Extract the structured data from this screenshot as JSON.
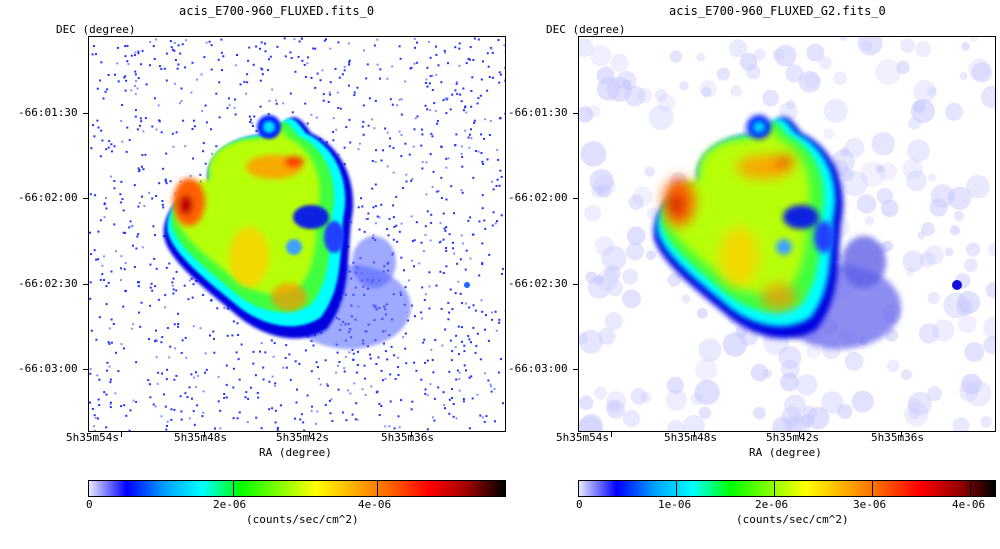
{
  "panels": [
    {
      "title": "acis_E700-960_FLUXED.fits_0",
      "ylabel": "DEC (degree)",
      "xlabel": "RA (degree)",
      "yticks": [
        "-66:01:30",
        "-66:02:00",
        "-66:02:30",
        "-66:03:00"
      ],
      "xticks": [
        "5h35m54s",
        "5h35m48s",
        "5h35m42s",
        "5h35m36s"
      ],
      "colorbar": {
        "ticks": [
          "0",
          "2e-06",
          "4e-06"
        ],
        "label": "(counts/sec/cm^2)"
      }
    },
    {
      "title": "acis_E700-960_FLUXED_G2.fits_0",
      "ylabel": "DEC (degree)",
      "xlabel": "RA (degree)",
      "yticks": [
        "-66:01:30",
        "-66:02:00",
        "-66:02:30",
        "-66:03:00"
      ],
      "xticks": [
        "5h35m54s",
        "5h35m48s",
        "5h35m42s",
        "5h35m36s"
      ],
      "colorbar": {
        "ticks": [
          "0",
          "1e-06",
          "2e-06",
          "3e-06",
          "4e-06"
        ],
        "label": "(counts/sec/cm^2)"
      }
    }
  ],
  "chart_data": [
    {
      "type": "heatmap",
      "title": "acis_E700-960_FLUXED.fits_0",
      "xlabel": "RA (degree)",
      "ylabel": "DEC (degree)",
      "x_tick_labels": [
        "5h35m54s",
        "5h35m48s",
        "5h35m42s",
        "5h35m36s"
      ],
      "y_tick_labels": [
        "-66:01:30",
        "-66:02:00",
        "-66:02:30",
        "-66:03:00"
      ],
      "colorbar_range": [
        0,
        5.8e-06
      ],
      "colorbar_ticks": [
        0,
        2e-06,
        4e-06
      ],
      "colorbar_label": "(counts/sec/cm^2)",
      "colormap": [
        "#ffffff",
        "#0000ff",
        "#00ffff",
        "#00ff00",
        "#ffff00",
        "#ff8000",
        "#ff0000",
        "#000000"
      ]
    },
    {
      "type": "heatmap",
      "title": "acis_E700-960_FLUXED_G2.fits_0",
      "xlabel": "RA (degree)",
      "ylabel": "DEC (degree)",
      "x_tick_labels": [
        "5h35m54s",
        "5h35m48s",
        "5h35m42s",
        "5h35m36s"
      ],
      "y_tick_labels": [
        "-66:01:30",
        "-66:02:00",
        "-66:02:30",
        "-66:03:00"
      ],
      "colorbar_range": [
        0,
        4.6e-06
      ],
      "colorbar_ticks": [
        0,
        1e-06,
        2e-06,
        3e-06,
        4e-06
      ],
      "colorbar_label": "(counts/sec/cm^2)",
      "colormap": [
        "#ffffff",
        "#0000ff",
        "#00ffff",
        "#00ff00",
        "#ffff00",
        "#ff8000",
        "#ff0000",
        "#000000"
      ]
    }
  ]
}
